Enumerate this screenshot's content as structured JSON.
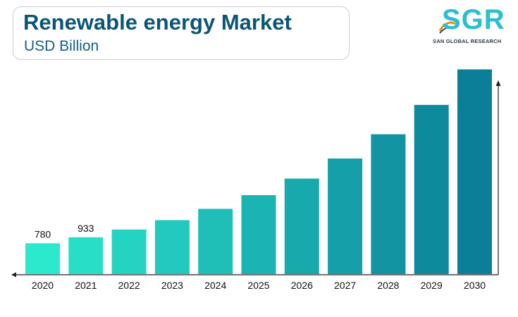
{
  "header": {
    "title": "Renewable energy Market",
    "subtitle": "USD Billion"
  },
  "logo": {
    "text": "SGR",
    "tagline": "SAN GLOBAL RESEARCH",
    "color_primary": "#2bbfd0",
    "color_accent": "#f28a1c"
  },
  "chart_data": {
    "type": "bar",
    "categories": [
      "2020",
      "2021",
      "2022",
      "2023",
      "2024",
      "2025",
      "2026",
      "2027",
      "2028",
      "2029",
      "2030"
    ],
    "values": [
      780,
      933,
      1129,
      1366,
      1653,
      2000,
      2420,
      2928,
      3543,
      4287,
      5187
    ],
    "data_labels": [
      "780",
      "933",
      "",
      "",
      "",
      "",
      "",
      "",
      "",
      "",
      ""
    ],
    "ylim": [
      0,
      6000
    ],
    "grid": false,
    "bar_color_start": "#2ce8cc",
    "bar_color_end": "#0b7f98"
  }
}
